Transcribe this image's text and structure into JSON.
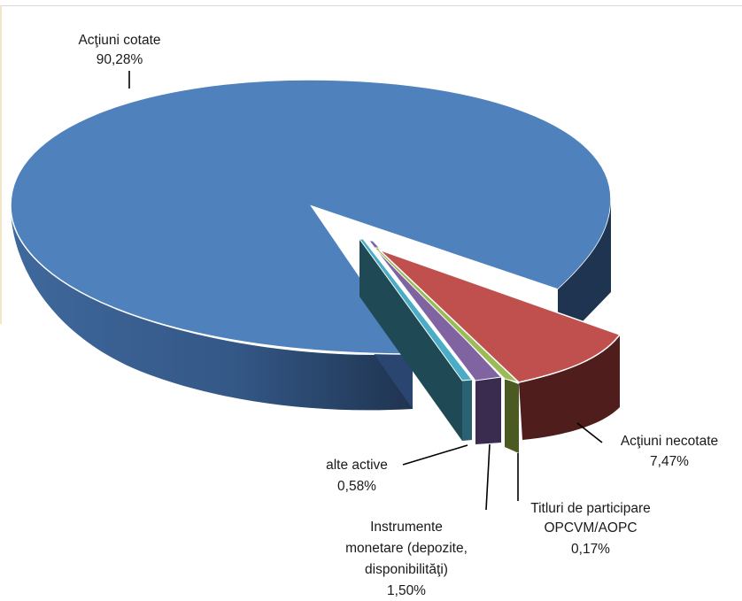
{
  "chart_data": {
    "type": "pie",
    "slices": [
      {
        "label": "Acţiuni cotate",
        "value": 90.28,
        "value_label": "90,28%",
        "color": "#4f81bd",
        "side_color": "#2e4d7a"
      },
      {
        "label": "Acţiuni necotate",
        "value": 7.47,
        "value_label": "7,47%",
        "color": "#c0504d",
        "side_color": "#4f1e1c"
      },
      {
        "label": "Titluri de participare OPCVM/AOPC",
        "value": 0.17,
        "value_label": "0,17%",
        "color": "#9bbb59",
        "side_color": "#4a5a22"
      },
      {
        "label": "Instrumente monetare (depozite, disponibilităţi)",
        "value": 1.5,
        "value_label": "1,50%",
        "color": "#8064a2",
        "side_color": "#3a2c4e"
      },
      {
        "label": "alte active",
        "value": 0.58,
        "value_label": "0,58%",
        "color": "#4bacc6",
        "side_color": "#1f4a55"
      }
    ],
    "style": "3d-pie-exploded",
    "legend": "none",
    "data_labels": "outside-with-leader-lines"
  }
}
